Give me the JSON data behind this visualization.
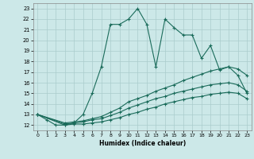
{
  "xlabel": "Humidex (Indice chaleur)",
  "bg_color": "#cce8e8",
  "grid_color": "#aacccc",
  "line_color": "#1a6b5a",
  "xlim": [
    -0.5,
    23.5
  ],
  "ylim": [
    11.5,
    23.5
  ],
  "yticks": [
    12,
    13,
    14,
    15,
    16,
    17,
    18,
    19,
    20,
    21,
    22,
    23
  ],
  "xticks": [
    0,
    1,
    2,
    3,
    4,
    5,
    6,
    7,
    8,
    9,
    10,
    11,
    12,
    13,
    14,
    15,
    16,
    17,
    18,
    19,
    20,
    21,
    22,
    23
  ],
  "series": [
    {
      "x": [
        0,
        1,
        2,
        3,
        4,
        5,
        6,
        7,
        8,
        9,
        10,
        11,
        12,
        13,
        14,
        15,
        16,
        17,
        18,
        19,
        20,
        21,
        22,
        23
      ],
      "y": [
        13,
        12.5,
        12,
        12,
        12.2,
        13.0,
        15.0,
        17.5,
        21.5,
        21.5,
        22.0,
        23.0,
        21.5,
        17.5,
        22.0,
        21.2,
        20.5,
        20.5,
        18.3,
        19.5,
        17.2,
        17.5,
        16.7,
        15.0
      ]
    },
    {
      "x": [
        0,
        3,
        4,
        5,
        6,
        7,
        8,
        9,
        10,
        11,
        12,
        13,
        14,
        15,
        16,
        17,
        18,
        19,
        20,
        21,
        22,
        23
      ],
      "y": [
        13,
        12.2,
        12.3,
        12.4,
        12.6,
        12.8,
        13.2,
        13.6,
        14.2,
        14.5,
        14.8,
        15.2,
        15.5,
        15.8,
        16.2,
        16.5,
        16.8,
        17.1,
        17.3,
        17.5,
        17.3,
        16.7
      ]
    },
    {
      "x": [
        0,
        3,
        4,
        5,
        6,
        7,
        8,
        9,
        10,
        11,
        12,
        13,
        14,
        15,
        16,
        17,
        18,
        19,
        20,
        21,
        22,
        23
      ],
      "y": [
        13,
        12.1,
        12.2,
        12.3,
        12.5,
        12.6,
        12.9,
        13.2,
        13.6,
        13.9,
        14.2,
        14.5,
        14.7,
        15.0,
        15.2,
        15.4,
        15.6,
        15.8,
        15.9,
        16.0,
        15.8,
        15.2
      ]
    },
    {
      "x": [
        0,
        3,
        4,
        5,
        6,
        7,
        8,
        9,
        10,
        11,
        12,
        13,
        14,
        15,
        16,
        17,
        18,
        19,
        20,
        21,
        22,
        23
      ],
      "y": [
        13,
        12.0,
        12.1,
        12.1,
        12.2,
        12.3,
        12.5,
        12.7,
        13.0,
        13.2,
        13.5,
        13.7,
        14.0,
        14.2,
        14.4,
        14.6,
        14.7,
        14.9,
        15.0,
        15.1,
        15.0,
        14.5
      ]
    }
  ]
}
